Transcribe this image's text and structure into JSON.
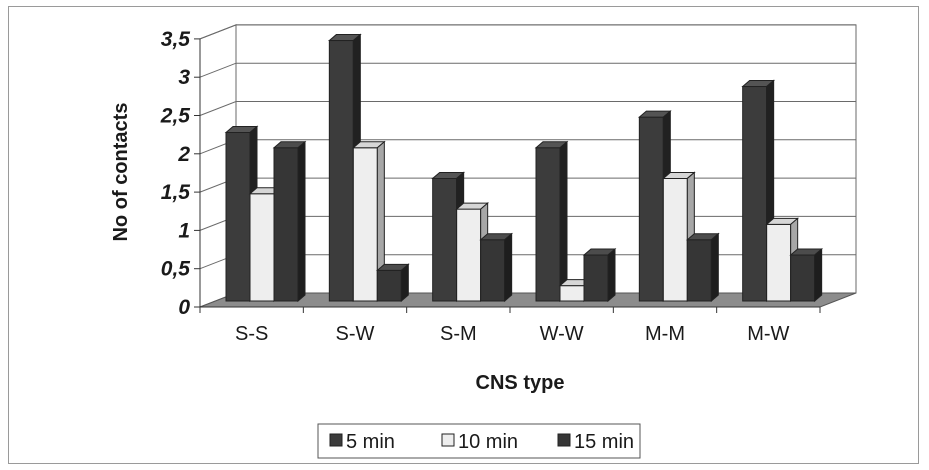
{
  "chart_data": {
    "type": "bar",
    "title": "",
    "xlabel": "CNS type",
    "ylabel": "No of contacts",
    "categories": [
      "S-S",
      "S-W",
      "S-M",
      "W-W",
      "M-M",
      "M-W"
    ],
    "series": [
      {
        "name": "5 min",
        "values": [
          2.2,
          3.4,
          1.6,
          2.0,
          2.4,
          2.8
        ],
        "color": "#3c3c3c"
      },
      {
        "name": "10 min",
        "values": [
          1.4,
          2.0,
          1.2,
          0.2,
          1.6,
          1.0
        ],
        "color": "#eeeeee"
      },
      {
        "name": "15 min",
        "values": [
          2.0,
          0.4,
          0.8,
          0.6,
          0.8,
          0.6
        ],
        "color": "#363636"
      }
    ],
    "yticks": [
      "0",
      "0,5",
      "1",
      "1,5",
      "2",
      "2,5",
      "3",
      "3,5"
    ],
    "ylim": [
      0,
      3.5
    ],
    "grid": true,
    "legend_position": "bottom",
    "style": "3d-clustered-column"
  }
}
